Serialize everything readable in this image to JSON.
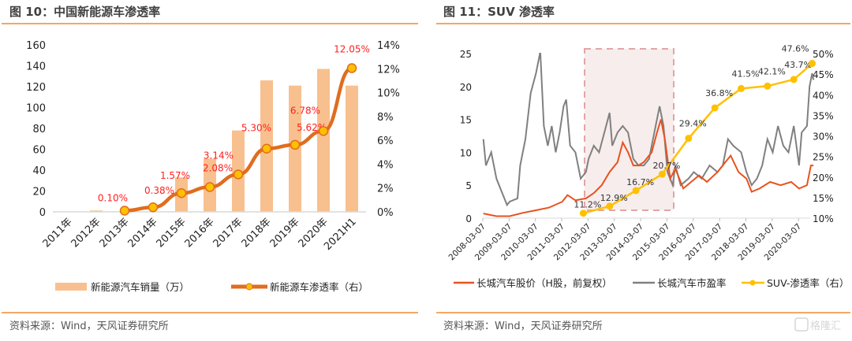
{
  "colors": {
    "accent": "#f08a30",
    "bar": "#f8c08e",
    "line_left": "#e06d1f",
    "marker": "#ffc000",
    "stock": "#e8521e",
    "pe": "#808080",
    "suv": "#ffc000",
    "shade": "#f7eded",
    "shade_border": "#e3a5a5",
    "data_label_left": "#ff2020"
  },
  "left": {
    "title": "图 10：中国新能源车渗透率",
    "source": "资料来源：Wind，天风证券研究所",
    "chart_data": {
      "type": "bar+line",
      "categories": [
        "2011年",
        "2012年",
        "2013年",
        "2014年",
        "2015年",
        "2016年",
        "2017年",
        "2018年",
        "2019年",
        "2020年",
        "2021H1"
      ],
      "series": [
        {
          "name": "新能源汽车销量（万）",
          "type": "bar",
          "axis": "left",
          "values": [
            0,
            1.3,
            0,
            0,
            33,
            51,
            78,
            126,
            121,
            137,
            121
          ]
        },
        {
          "name": "新能源车渗透率（右）",
          "type": "line",
          "axis": "right",
          "values": [
            null,
            null,
            0.1,
            0.38,
            1.57,
            2.08,
            3.14,
            5.3,
            5.62,
            6.78,
            12.05
          ],
          "labels": [
            "",
            "",
            "0.10%",
            "0.38%",
            "1.57%",
            "2.08%",
            "3.14%",
            "5.30%",
            "5.62%",
            "6.78%",
            "12.05%"
          ]
        }
      ],
      "ylim": [
        0,
        160
      ],
      "yticks": [
        "0",
        "20",
        "40",
        "60",
        "80",
        "100",
        "120",
        "140",
        "160"
      ],
      "y2lim": [
        0,
        14
      ],
      "y2ticks": [
        "0%",
        "2%",
        "4%",
        "6%",
        "8%",
        "10%",
        "12%",
        "14%"
      ],
      "legend": "bottom",
      "grid": false
    }
  },
  "right": {
    "title": "图 11：SUV 渗透率",
    "source": "资料来源：Wind，天风证券研究所",
    "watermark": "格隆汇",
    "chart_data": {
      "type": "line",
      "xticks": [
        "2008-03-07",
        "2009-03-07",
        "2010-03-07",
        "2011-03-07",
        "2012-03-07",
        "2013-03-07",
        "2014-03-07",
        "2015-03-07",
        "2016-03-07",
        "2017-03-07",
        "2018-03-07",
        "2019-03-07",
        "2020-03-07"
      ],
      "ylim": [
        0,
        25
      ],
      "yticks": [
        "0",
        "5",
        "10",
        "15",
        "20",
        "25"
      ],
      "y2lim": [
        10,
        50
      ],
      "y2ticks": [
        "10%",
        "15%",
        "20%",
        "25%",
        "30%",
        "35%",
        "40%",
        "45%",
        "50%"
      ],
      "highlight_range": [
        "2012-01",
        "2015-06"
      ],
      "legend": "bottom",
      "grid": false,
      "series": [
        {
          "name": "长城汽车股价（H股，前复权）",
          "axis": "left",
          "x": [
            2008.2,
            2008.7,
            2009.2,
            2009.7,
            2010.2,
            2010.7,
            2011.2,
            2011.4,
            2011.7,
            2012.1,
            2012.4,
            2012.7,
            2013.0,
            2013.3,
            2013.5,
            2013.7,
            2013.9,
            2014.1,
            2014.3,
            2014.6,
            2014.8,
            2014.95,
            2015.1,
            2015.3,
            2015.5,
            2015.8,
            2016.1,
            2016.4,
            2016.7,
            2017.1,
            2017.4,
            2017.6,
            2017.9,
            2018.2,
            2018.4,
            2018.7,
            2019.1,
            2019.5,
            2019.9,
            2020.2,
            2020.5,
            2020.65,
            2020.75
          ],
          "y": [
            0.7,
            0.3,
            0.3,
            0.8,
            1.2,
            1.6,
            2.5,
            3.5,
            2.7,
            3.0,
            3.8,
            5.0,
            7.0,
            8.5,
            11.5,
            10.0,
            8.0,
            8.0,
            8.5,
            10.0,
            13.0,
            15.0,
            12.0,
            6.0,
            7.5,
            4.5,
            5.5,
            6.5,
            5.5,
            7.0,
            8.5,
            9.5,
            7.0,
            6.0,
            4.0,
            4.5,
            5.5,
            5.0,
            5.5,
            4.5,
            5.0,
            8.0,
            8.0
          ]
        },
        {
          "name": "长城汽车市盈率",
          "axis": "left",
          "x": [
            2008.2,
            2008.3,
            2008.5,
            2008.7,
            2008.9,
            2009.1,
            2009.2,
            2009.5,
            2009.6,
            2009.8,
            2010.0,
            2010.2,
            2010.35,
            2010.37,
            2010.5,
            2010.65,
            2010.8,
            2010.95,
            2011.1,
            2011.25,
            2011.35,
            2011.5,
            2011.7,
            2011.9,
            2012.1,
            2012.2,
            2012.4,
            2012.6,
            2012.8,
            2013.0,
            2013.1,
            2013.3,
            2013.5,
            2013.7,
            2013.9,
            2014.1,
            2014.3,
            2014.5,
            2014.7,
            2014.9,
            2015.05,
            2015.2,
            2015.4,
            2015.5,
            2015.7,
            2016.0,
            2016.2,
            2016.5,
            2016.8,
            2017.1,
            2017.3,
            2017.5,
            2017.7,
            2018.0,
            2018.2,
            2018.4,
            2018.6,
            2018.8,
            2019.0,
            2019.2,
            2019.4,
            2019.6,
            2019.8,
            2020.0,
            2020.2,
            2020.3,
            2020.5,
            2020.6,
            2020.7,
            2020.75
          ],
          "y": [
            12,
            8,
            10,
            6,
            4,
            2,
            2.5,
            3,
            8,
            12,
            19,
            22,
            25,
            25,
            14,
            11,
            14,
            10,
            13,
            17,
            18,
            11,
            10,
            6,
            7,
            9,
            11,
            10,
            13,
            16,
            11,
            13,
            14,
            13,
            9,
            8,
            8,
            9,
            13,
            17,
            14,
            7,
            5,
            8,
            5,
            6,
            7,
            6,
            8,
            7,
            8,
            12,
            11,
            10,
            7,
            5,
            6,
            8,
            12,
            10,
            14,
            11,
            10,
            14,
            8,
            13,
            14,
            20,
            22,
            21
          ]
        },
        {
          "name": "SUV-渗透率（右）",
          "axis": "right",
          "x": [
            2012.0,
            2013.0,
            2014.0,
            2015.0,
            2016.0,
            2017.0,
            2018.0,
            2019.0,
            2020.0,
            2020.7
          ],
          "y": [
            11.2,
            12.9,
            16.7,
            20.7,
            29.4,
            36.8,
            41.5,
            42.1,
            43.7,
            47.6
          ],
          "labels": [
            "11.2%",
            "12.9%",
            "16.7%",
            "20.7%",
            "29.4%",
            "36.8%",
            "41.5%",
            "42.1%",
            "43.7%",
            "47.6%"
          ]
        }
      ]
    }
  }
}
